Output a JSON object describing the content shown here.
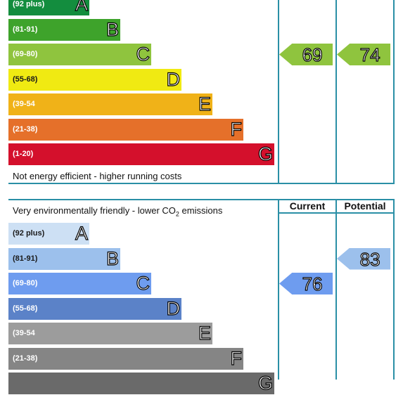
{
  "chart_data": [
    {
      "type": "bar",
      "categories": [
        "A",
        "B",
        "C",
        "D",
        "E",
        "F",
        "G"
      ],
      "ranges": [
        "(92 plus)",
        "(81-91)",
        "(69-80)",
        "(55-68)",
        "(39-54",
        "(21-38)",
        "(1-20)"
      ],
      "colors": [
        "#138d3e",
        "#3ea32b",
        "#8fc43e",
        "#f0ea12",
        "#f0b218",
        "#e5702a",
        "#d4102c"
      ],
      "range_text_dark": [
        false,
        false,
        false,
        true,
        false,
        false,
        false
      ],
      "footer": "Not energy efficient - higher running costs",
      "current": {
        "value": 69,
        "band": "C",
        "color": "#8fc43e"
      },
      "potential": {
        "value": 74,
        "band": "C",
        "color": "#8fc43e"
      }
    },
    {
      "type": "bar",
      "categories": [
        "A",
        "B",
        "C",
        "D",
        "E",
        "F",
        "G"
      ],
      "ranges": [
        "(92 plus)",
        "(81-91)",
        "(69-80)",
        "(55-68)",
        "(39-54",
        "(21-38)",
        ""
      ],
      "colors": [
        "#cde0f4",
        "#9cc0ec",
        "#6e9cef",
        "#5b82c8",
        "#9c9c9c",
        "#858585",
        "#6a6a6a"
      ],
      "range_text_dark": [
        true,
        true,
        false,
        false,
        false,
        false,
        false
      ],
      "heading": {
        "prefix": "Very environmentally friendly - lower CO",
        "subscript": "2",
        "suffix": " emissions"
      },
      "column_headers": {
        "current": "Current",
        "potential": "Potential"
      },
      "current": {
        "value": 76,
        "band": "C",
        "color": "#6e9cef"
      },
      "potential": {
        "value": 83,
        "band": "B",
        "color": "#9cc0ec"
      }
    }
  ]
}
